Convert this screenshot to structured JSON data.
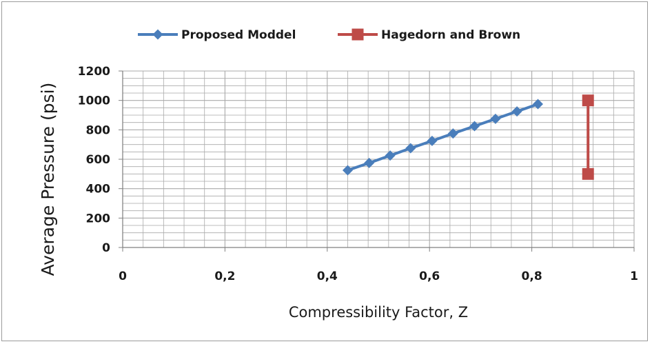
{
  "chart_data": {
    "type": "line",
    "title": "",
    "xlabel": "Compressibility Factor, Z",
    "ylabel": "Average Pressure (psi)",
    "xlim": [
      0,
      1
    ],
    "ylim": [
      0,
      1200
    ],
    "x_ticks": [
      0,
      0.2,
      0.4,
      0.6,
      0.8,
      1
    ],
    "x_tick_labels": [
      "0",
      "0,2",
      "0,4",
      "0,6",
      "0,8",
      "1"
    ],
    "y_ticks": [
      0,
      200,
      400,
      600,
      800,
      1000,
      1200
    ],
    "y_tick_labels": [
      "0",
      "200",
      "400",
      "600",
      "800",
      "1000",
      "1200"
    ],
    "grid": true,
    "legend_position": "top",
    "series": [
      {
        "name": "Proposed Moddel",
        "color": "#4a7ebb",
        "marker": "diamond",
        "points": [
          {
            "x": 0.44,
            "y": 525
          },
          {
            "x": 0.482,
            "y": 575
          },
          {
            "x": 0.523,
            "y": 625
          },
          {
            "x": 0.563,
            "y": 675
          },
          {
            "x": 0.605,
            "y": 725
          },
          {
            "x": 0.646,
            "y": 775
          },
          {
            "x": 0.688,
            "y": 825
          },
          {
            "x": 0.729,
            "y": 875
          },
          {
            "x": 0.771,
            "y": 925
          },
          {
            "x": 0.812,
            "y": 975
          }
        ]
      },
      {
        "name": "Hagedorn and Brown",
        "color": "#be4b48",
        "marker": "square",
        "points": [
          {
            "x": 0.91,
            "y": 1000
          },
          {
            "x": 0.91,
            "y": 500
          }
        ]
      }
    ]
  }
}
